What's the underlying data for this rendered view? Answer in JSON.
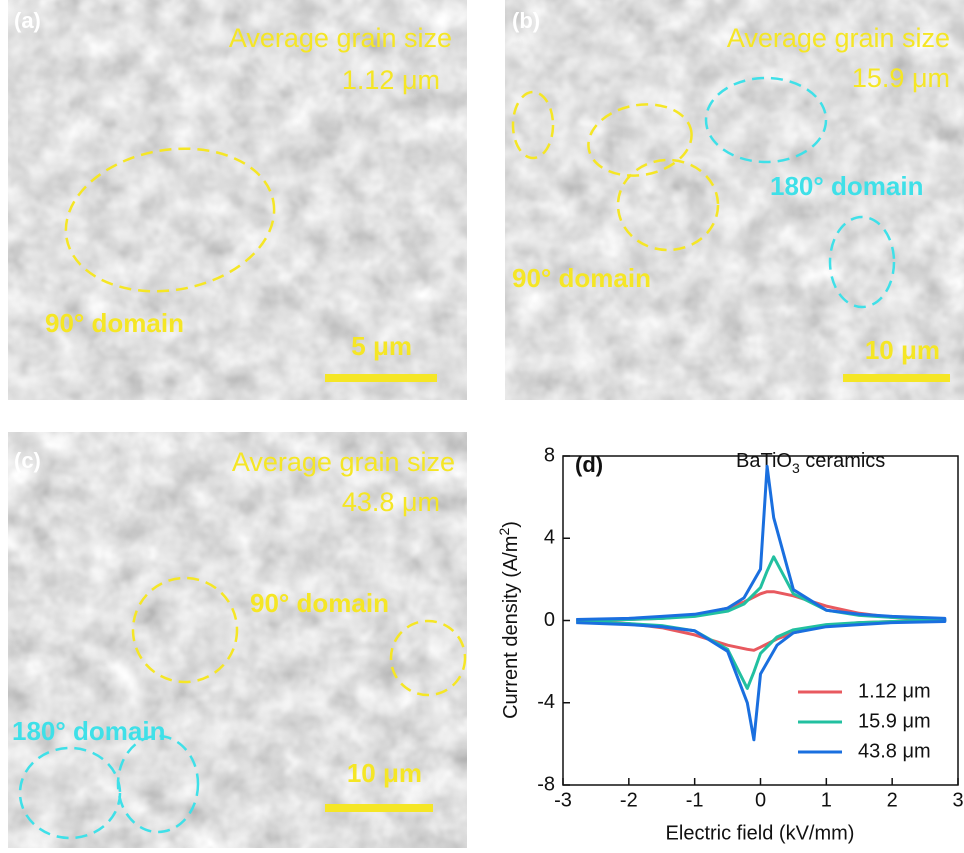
{
  "panels": [
    {
      "label": "(a)",
      "caption": "Average grain size",
      "size": "1.12 μm",
      "domains": [
        "90° domain"
      ],
      "scale_bar": "5 μm"
    },
    {
      "label": "(b)",
      "caption": "Average grain size",
      "size": "15.9 μm",
      "domains": [
        "180° domain",
        "90° domain"
      ],
      "scale_bar": "10 μm"
    },
    {
      "label": "(c)",
      "caption": "Average grain size",
      "size": "43.8 μm",
      "domains": [
        "90° domain",
        "180° domain"
      ],
      "scale_bar": "10 μm"
    }
  ],
  "chart_data": {
    "type": "line",
    "label": "(d)",
    "annotation": {
      "text": "BaTiO",
      "sub": "3",
      "rest": " ceramics"
    },
    "x_label": "Electric field (kV/mm)",
    "y_label": {
      "text": "Current density (A/m",
      "sup": "2",
      "rest": ")"
    },
    "xlim": [
      -3,
      3
    ],
    "xticks": [
      -3,
      -2,
      -1,
      0,
      1,
      2,
      3
    ],
    "ylim": [
      -8,
      8
    ],
    "yticks": [
      -8,
      -4,
      0,
      4,
      8
    ],
    "legend": "lower right",
    "x": [
      -2.8,
      -2,
      -1.5,
      -1,
      -0.5,
      -0.25,
      0,
      0.1,
      0.2,
      0.5,
      1,
      1.5,
      2,
      2.8,
      2.8,
      2,
      1.5,
      1,
      0.5,
      0.25,
      0,
      -0.1,
      -0.2,
      -0.5,
      -1,
      -1.5,
      -2,
      -2.8
    ],
    "series": [
      {
        "name": "1.12 μm",
        "color": "#e8595f",
        "values": [
          0,
          0.05,
          0.1,
          0.25,
          0.6,
          0.9,
          1.3,
          1.4,
          1.4,
          1.2,
          0.7,
          0.35,
          0.15,
          0,
          0,
          -0.05,
          -0.1,
          -0.25,
          -0.6,
          -0.9,
          -1.3,
          -1.45,
          -1.4,
          -1.2,
          -0.7,
          -0.35,
          -0.15,
          0
        ]
      },
      {
        "name": "15.9 μm",
        "color": "#22c0a0",
        "values": [
          0,
          0.05,
          0.1,
          0.2,
          0.45,
          0.8,
          1.6,
          2.4,
          3.1,
          1.3,
          0.5,
          0.25,
          0.15,
          0.05,
          0,
          -0.05,
          -0.1,
          -0.2,
          -0.45,
          -0.8,
          -1.6,
          -2.5,
          -3.3,
          -1.4,
          -0.5,
          -0.25,
          -0.15,
          -0.05
        ]
      },
      {
        "name": "43.8 μm",
        "color": "#1a6fdf",
        "values": [
          0.05,
          0.1,
          0.2,
          0.3,
          0.6,
          1.1,
          2.5,
          7.5,
          5.0,
          1.5,
          0.5,
          0.3,
          0.2,
          0.1,
          -0.05,
          -0.1,
          -0.2,
          -0.3,
          -0.6,
          -1.2,
          -2.6,
          -5.8,
          -4.0,
          -1.5,
          -0.5,
          -0.3,
          -0.2,
          -0.1
        ]
      }
    ]
  }
}
